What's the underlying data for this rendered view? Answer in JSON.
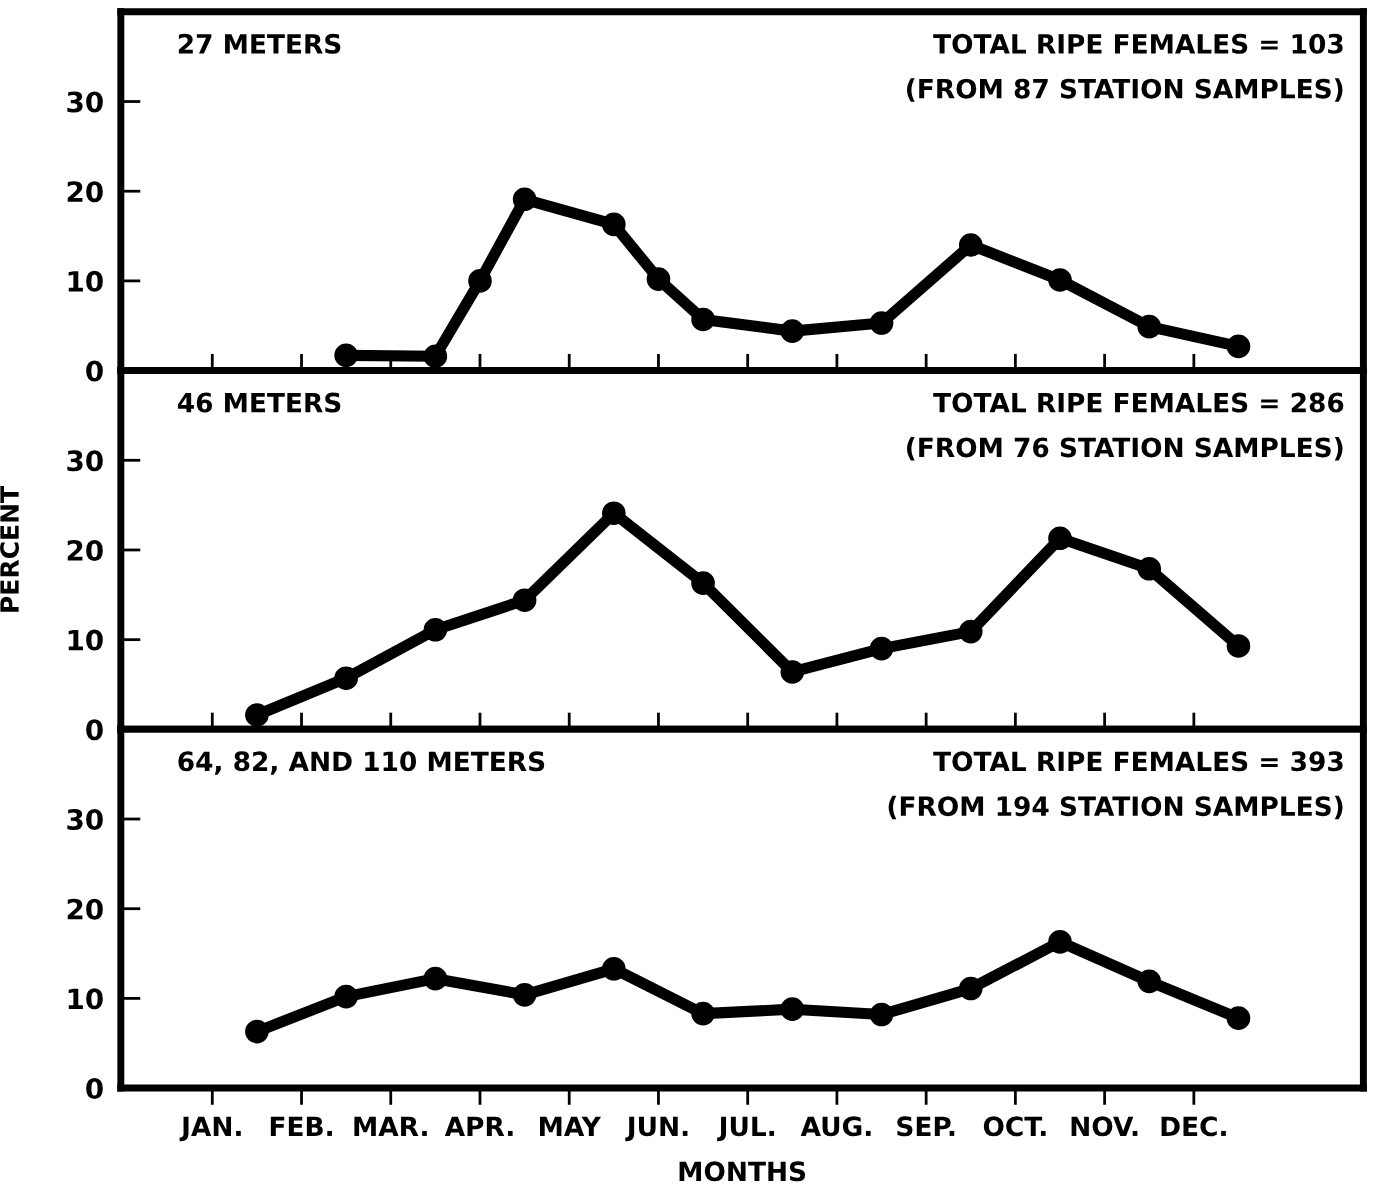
{
  "chart_data": [
    {
      "type": "line",
      "categories": [
        null,
        null,
        null,
        null,
        null,
        null,
        null,
        null,
        null,
        null,
        null,
        null,
        null,
        null,
        null,
        null,
        null,
        null,
        null,
        null,
        null,
        null,
        null,
        null
      ],
      "series": [
        {
          "color": "#000000",
          "values": [
            null,
            null,
            null,
            1.7,
            null,
            1.6,
            10,
            19.1,
            null,
            16.3,
            10.2,
            5.7,
            null,
            4.4,
            null,
            5.3,
            null,
            14,
            null,
            10.1,
            null,
            4.9,
            null,
            2.7
          ]
        }
      ],
      "ylim": [
        0,
        40
      ],
      "yticks": [
        0,
        10,
        20,
        30
      ],
      "tick_labels": "y",
      "marker": "circle",
      "line_style": "solid",
      "grid": false,
      "legend": false,
      "annotations": [
        "27 METERS",
        "TOTAL RIPE FEMALES = 103",
        "(FROM 87 STATION SAMPLES)"
      ]
    },
    {
      "type": "line",
      "categories": [
        null,
        null,
        null,
        null,
        null,
        null,
        null,
        null,
        null,
        null,
        null,
        null,
        null,
        null,
        null,
        null,
        null,
        null,
        null,
        null,
        null,
        null,
        null,
        null
      ],
      "series": [
        {
          "color": "#000000",
          "values": [
            null,
            1.6,
            null,
            5.7,
            null,
            11.1,
            null,
            14.4,
            null,
            24.1,
            null,
            16.3,
            null,
            6.4,
            null,
            9,
            null,
            10.9,
            null,
            21.3,
            null,
            17.9,
            null,
            9.3
          ]
        }
      ],
      "ylim": [
        0,
        40
      ],
      "yticks": [
        0,
        10,
        20,
        30
      ],
      "tick_labels": "y",
      "marker": "circle",
      "line_style": "solid",
      "grid": false,
      "legend": false,
      "ylabel": "PERCENT",
      "annotations": [
        "46 METERS",
        "TOTAL RIPE FEMALES = 286",
        "(FROM 76 STATION SAMPLES)"
      ]
    },
    {
      "type": "line",
      "categories": [
        "JAN.",
        null,
        "FEB.",
        null,
        "MAR.",
        null,
        "APR.",
        null,
        "MAY",
        null,
        "JUN.",
        null,
        "JUL.",
        null,
        "AUG.",
        null,
        "SEP.",
        null,
        "OCT.",
        null,
        "NOV.",
        null,
        "DEC.",
        null
      ],
      "series": [
        {
          "color": "#000000",
          "values": [
            null,
            6.3,
            null,
            10.2,
            null,
            12.2,
            null,
            10.4,
            null,
            13.3,
            null,
            8.3,
            null,
            8.8,
            null,
            8.2,
            null,
            11.1,
            null,
            16.3,
            null,
            11.9,
            null,
            7.8
          ]
        }
      ],
      "ylim": [
        0,
        40
      ],
      "yticks": [
        0,
        10,
        20,
        30
      ],
      "marker": "circle",
      "line_style": "solid",
      "grid": false,
      "legend": false,
      "xlabel": "MONTHS",
      "annotations": [
        "64, 82, AND 110 METERS",
        "TOTAL RIPE FEMALES = 393",
        "(FROM 194 STATION SAMPLES)"
      ]
    }
  ]
}
